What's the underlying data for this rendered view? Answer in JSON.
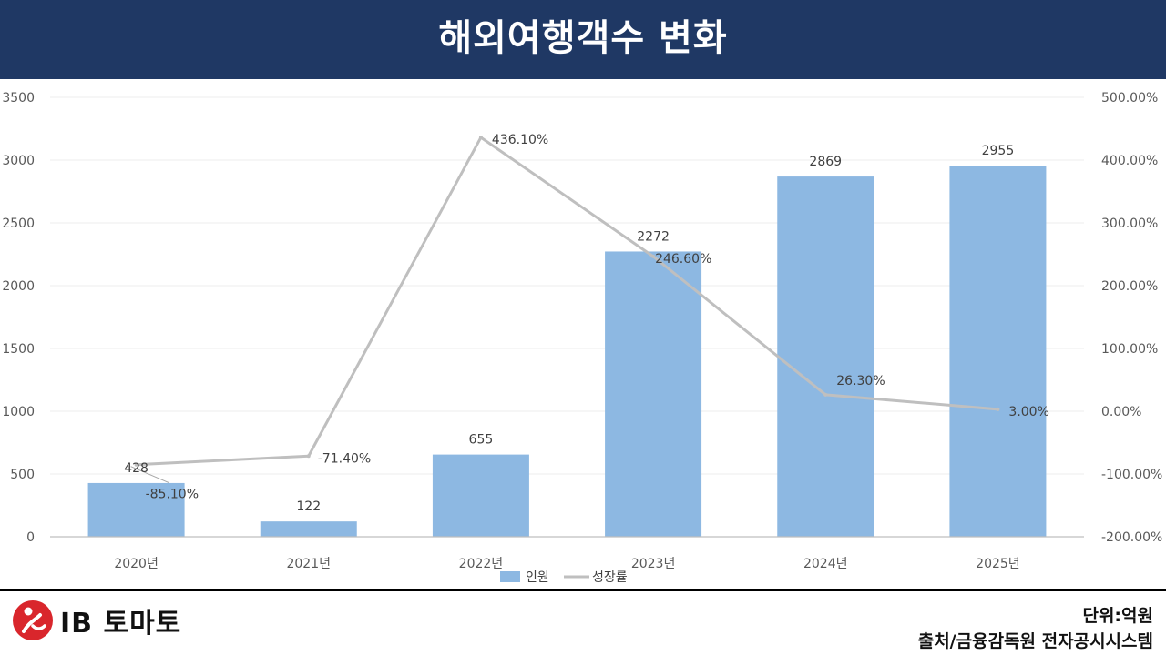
{
  "header": {
    "title": "해외여행객수 변화"
  },
  "chart_data": {
    "type": "bar",
    "categories": [
      "2020년",
      "2021년",
      "2022년",
      "2023년",
      "2024년",
      "2025년"
    ],
    "series": [
      {
        "name": "인원",
        "kind": "bar",
        "axis": "left",
        "color": "#8db8e2",
        "values": [
          428,
          122,
          655,
          2272,
          2869,
          2955
        ],
        "labels": [
          "428",
          "122",
          "655",
          "2272",
          "2869",
          "2955"
        ]
      },
      {
        "name": "성장률",
        "kind": "line",
        "axis": "right",
        "color": "#bfbfbf",
        "values": [
          -85.1,
          -71.4,
          436.1,
          246.6,
          26.3,
          3.0
        ],
        "labels": [
          "-85.10%",
          "-71.40%",
          "436.10%",
          "246.60%",
          "26.30%",
          "3.00%"
        ]
      }
    ],
    "y_left": {
      "min": 0,
      "max": 3500,
      "ticks": [
        "0",
        "500",
        "1000",
        "1500",
        "2000",
        "2500",
        "3000",
        "3500"
      ]
    },
    "y_right": {
      "min": -200,
      "max": 500,
      "ticks": [
        "-200.00%",
        "-100.00%",
        "0.00%",
        "100.00%",
        "200.00%",
        "300.00%",
        "400.00%",
        "500.00%"
      ]
    },
    "legend": [
      "인원",
      "성장률"
    ]
  },
  "footer": {
    "logo_text": "IB 토마토",
    "unit": "단위:억원",
    "source": "출처/금융감독원 전자공시시스템"
  }
}
